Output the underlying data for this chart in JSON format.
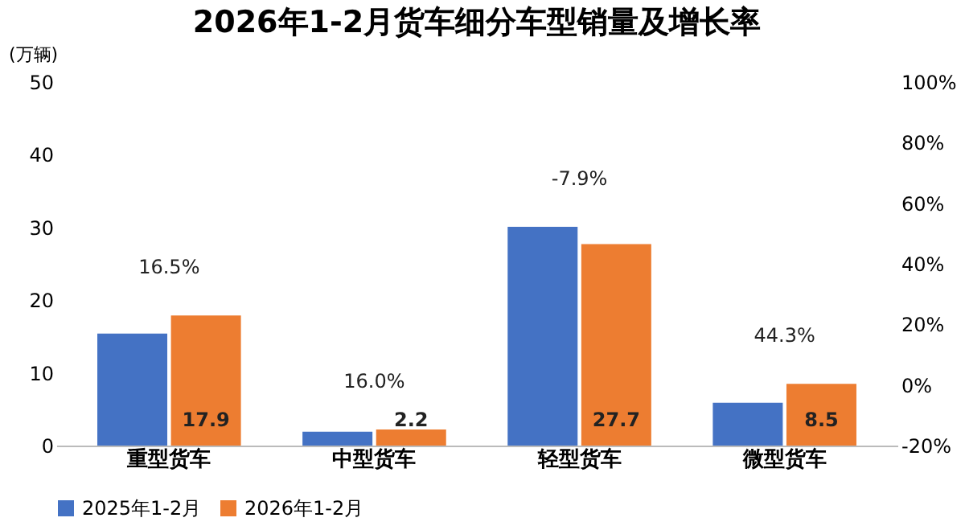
{
  "chart_data": {
    "type": "bar",
    "title": "2026年1-2月货车细分车型销量及增长率",
    "ylabel": "(万辆)",
    "categories": [
      "重型货车",
      "中型货车",
      "轻型货车",
      "微型货车"
    ],
    "series": [
      {
        "name": "2025年1-2月",
        "color": "#4472c4",
        "values": [
          15.4,
          1.9,
          30.1,
          5.9
        ]
      },
      {
        "name": "2026年1-2月",
        "color": "#ed7d31",
        "values": [
          17.9,
          2.2,
          27.7,
          8.5
        ],
        "value_labels": [
          "17.9",
          "2.2",
          "27.7",
          "8.5"
        ]
      }
    ],
    "annotations": [
      "16.5%",
      "16.0%",
      "-7.9%",
      "44.3%"
    ],
    "ylim": [
      0,
      50
    ],
    "yticks": [
      0,
      10,
      20,
      30,
      40,
      50
    ],
    "y2lim": [
      -20,
      100
    ],
    "y2ticks": [
      {
        "value": -20,
        "label": "-20%"
      },
      {
        "value": 0,
        "label": "0%"
      },
      {
        "value": 20,
        "label": "20%"
      },
      {
        "value": 40,
        "label": "40%"
      },
      {
        "value": 60,
        "label": "60%"
      },
      {
        "value": 80,
        "label": "80%"
      },
      {
        "value": 100,
        "label": "100%"
      }
    ],
    "grid": false,
    "legend": "bottom"
  }
}
